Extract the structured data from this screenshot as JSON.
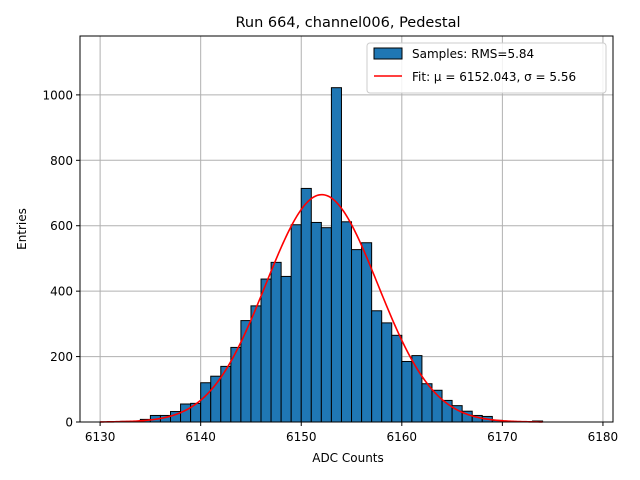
{
  "chart_data": {
    "type": "bar",
    "title": "Run 664, channel006, Pedestal",
    "xlabel": "ADC Counts",
    "ylabel": "Entries",
    "xlim": [
      6128,
      6181
    ],
    "ylim": [
      0,
      1180
    ],
    "xticks": [
      6130,
      6140,
      6150,
      6160,
      6170,
      6180
    ],
    "yticks": [
      0,
      200,
      400,
      600,
      800,
      1000
    ],
    "grid": true,
    "legend_position": "top-right",
    "bin_width": 1,
    "bins": [
      {
        "x": 6130,
        "v": 0
      },
      {
        "x": 6131,
        "v": 0
      },
      {
        "x": 6132,
        "v": 2
      },
      {
        "x": 6133,
        "v": 3
      },
      {
        "x": 6134,
        "v": 8
      },
      {
        "x": 6135,
        "v": 20
      },
      {
        "x": 6136,
        "v": 20
      },
      {
        "x": 6137,
        "v": 32
      },
      {
        "x": 6138,
        "v": 55
      },
      {
        "x": 6139,
        "v": 57
      },
      {
        "x": 6140,
        "v": 120
      },
      {
        "x": 6141,
        "v": 140
      },
      {
        "x": 6142,
        "v": 170
      },
      {
        "x": 6143,
        "v": 228
      },
      {
        "x": 6144,
        "v": 310
      },
      {
        "x": 6145,
        "v": 355
      },
      {
        "x": 6146,
        "v": 437
      },
      {
        "x": 6147,
        "v": 488
      },
      {
        "x": 6148,
        "v": 445
      },
      {
        "x": 6149,
        "v": 603
      },
      {
        "x": 6150,
        "v": 714
      },
      {
        "x": 6151,
        "v": 610
      },
      {
        "x": 6152,
        "v": 594
      },
      {
        "x": 6153,
        "v": 1022
      },
      {
        "x": 6154,
        "v": 612
      },
      {
        "x": 6155,
        "v": 527
      },
      {
        "x": 6156,
        "v": 548
      },
      {
        "x": 6157,
        "v": 340
      },
      {
        "x": 6158,
        "v": 303
      },
      {
        "x": 6159,
        "v": 265
      },
      {
        "x": 6160,
        "v": 185
      },
      {
        "x": 6161,
        "v": 203
      },
      {
        "x": 6162,
        "v": 117
      },
      {
        "x": 6163,
        "v": 97
      },
      {
        "x": 6164,
        "v": 66
      },
      {
        "x": 6165,
        "v": 50
      },
      {
        "x": 6166,
        "v": 33
      },
      {
        "x": 6167,
        "v": 20
      },
      {
        "x": 6168,
        "v": 17
      },
      {
        "x": 6169,
        "v": 5
      },
      {
        "x": 6170,
        "v": 2
      },
      {
        "x": 6171,
        "v": 0
      },
      {
        "x": 6172,
        "v": 0
      },
      {
        "x": 6173,
        "v": 3
      }
    ],
    "fit": {
      "mu": 6152.043,
      "sigma": 5.56,
      "amplitude": 695,
      "x_range": [
        6130,
        6174
      ]
    },
    "legend": [
      {
        "label": "Samples: RMS=5.84",
        "kind": "patch"
      },
      {
        "label": "Fit: μ = 6152.043, σ = 5.56",
        "kind": "line"
      }
    ],
    "colors": {
      "bar_fill": "#1f77b4",
      "bar_edge": "#000000",
      "fit_line": "#ff0000",
      "grid": "#b0b0b0"
    }
  }
}
